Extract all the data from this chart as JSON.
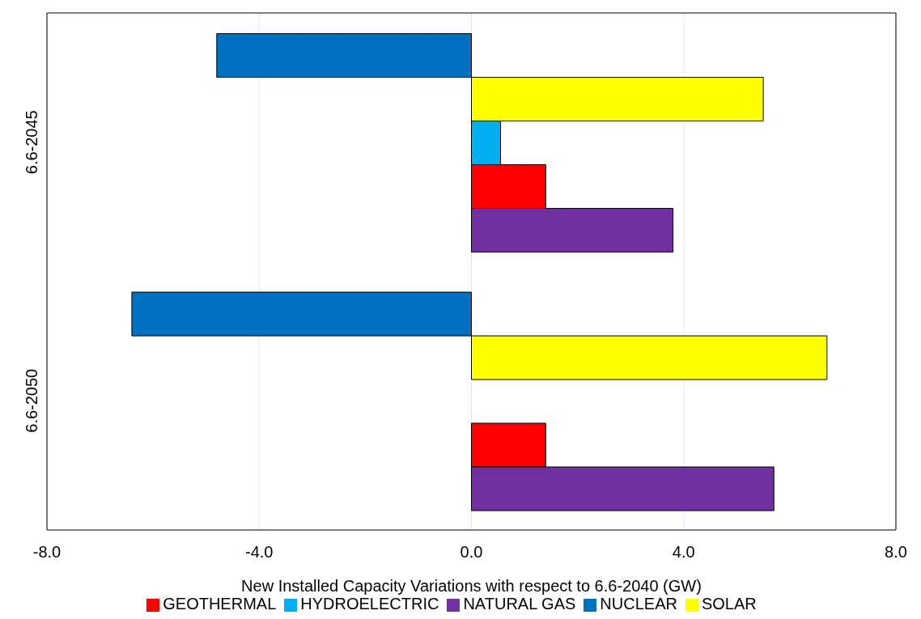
{
  "chart_data": {
    "type": "bar",
    "orientation": "horizontal",
    "xlabel": "New Installed Capacity Variations with respect to 6.6-2040 (GW)",
    "categories": [
      "6.6-2045",
      "6.6-2050"
    ],
    "series": [
      {
        "name": "NUCLEAR",
        "color": "#0070c0",
        "values": [
          -4.8,
          -6.4
        ]
      },
      {
        "name": "SOLAR",
        "color": "#ffff00",
        "values": [
          5.5,
          6.7
        ]
      },
      {
        "name": "HYDROELECTRIC",
        "color": "#00b0f0",
        "values": [
          0.55,
          0
        ]
      },
      {
        "name": "GEOTHERMAL",
        "color": "#ff0000",
        "values": [
          1.4,
          1.4
        ]
      },
      {
        "name": "NATURAL GAS",
        "color": "#7030a0",
        "values": [
          3.8,
          5.7
        ]
      }
    ],
    "xlim": [
      -8,
      8
    ],
    "xticks": [
      {
        "value": -8,
        "label": "-8.0"
      },
      {
        "value": -4,
        "label": "-4.0"
      },
      {
        "value": 0,
        "label": "0.0"
      },
      {
        "value": 4,
        "label": "4.0"
      },
      {
        "value": 8,
        "label": "8.0"
      }
    ],
    "grid": "x",
    "legend": "bottom"
  }
}
